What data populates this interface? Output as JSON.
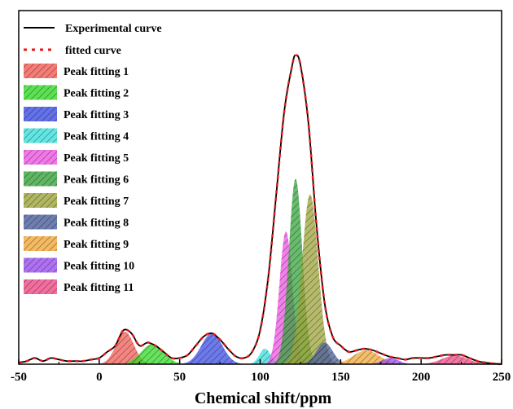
{
  "chart_data": {
    "type": "area",
    "title": "",
    "xlabel": "Chemical shift/ppm",
    "ylabel": "",
    "xlim": [
      -50,
      250
    ],
    "ylim": [
      0,
      1.0
    ],
    "x_ticks": [
      -50,
      0,
      50,
      100,
      150,
      200,
      250
    ],
    "x_tick_labels": [
      "-50",
      "0",
      "50",
      "100",
      "150",
      "200",
      "250"
    ],
    "grid": false,
    "legend_position": "top-left",
    "experimental_curve": {
      "name": "Experimental curve",
      "color": "#000000",
      "x": [
        -50,
        -45,
        -40,
        -35,
        -30,
        -25,
        -20,
        -15,
        -10,
        -5,
        0,
        5,
        10,
        15,
        20,
        25,
        30,
        35,
        40,
        45,
        50,
        55,
        60,
        65,
        70,
        75,
        80,
        85,
        90,
        95,
        100,
        105,
        110,
        115,
        120,
        122,
        125,
        130,
        135,
        140,
        145,
        150,
        155,
        160,
        165,
        170,
        175,
        180,
        185,
        190,
        195,
        200,
        205,
        210,
        215,
        220,
        225,
        230,
        235,
        240,
        245,
        250
      ],
      "y": [
        0.005,
        0.01,
        0.02,
        0.01,
        0.02,
        0.015,
        0.01,
        0.01,
        0.01,
        0.015,
        0.02,
        0.04,
        0.06,
        0.11,
        0.1,
        0.06,
        0.07,
        0.06,
        0.04,
        0.02,
        0.02,
        0.03,
        0.06,
        0.09,
        0.1,
        0.08,
        0.05,
        0.025,
        0.02,
        0.04,
        0.11,
        0.28,
        0.55,
        0.82,
        0.97,
        1.0,
        0.97,
        0.78,
        0.45,
        0.2,
        0.09,
        0.06,
        0.04,
        0.045,
        0.05,
        0.045,
        0.035,
        0.025,
        0.02,
        0.015,
        0.02,
        0.02,
        0.02,
        0.025,
        0.03,
        0.03,
        0.03,
        0.02,
        0.01,
        0.005,
        0.002,
        0.0
      ]
    },
    "fitted_curve": {
      "name": "fitted curve",
      "color": "#e8191b"
    },
    "peaks": [
      {
        "name": "Peak fitting 1",
        "center": 16,
        "height": 0.105,
        "width": 5.5,
        "color": "#f25c54"
      },
      {
        "name": "Peak fitting 2",
        "center": 33,
        "height": 0.065,
        "width": 7,
        "color": "#33d927"
      },
      {
        "name": "Peak fitting 3",
        "center": 70,
        "height": 0.1,
        "width": 6.5,
        "color": "#3c4ee6"
      },
      {
        "name": "Peak fitting 4",
        "center": 103,
        "height": 0.05,
        "width": 3.5,
        "color": "#38e0dc"
      },
      {
        "name": "Peak fitting 5",
        "center": 116,
        "height": 0.43,
        "width": 4,
        "color": "#ef55e4"
      },
      {
        "name": "Peak fitting 6",
        "center": 122,
        "height": 0.6,
        "width": 4.2,
        "color": "#37a43c"
      },
      {
        "name": "Peak fitting 7",
        "center": 131,
        "height": 0.55,
        "width": 5,
        "color": "#9ea43a"
      },
      {
        "name": "Peak fitting 8",
        "center": 140,
        "height": 0.07,
        "width": 5,
        "color": "#4a5e9c"
      },
      {
        "name": "Peak fitting 9",
        "center": 166,
        "height": 0.045,
        "width": 8,
        "color": "#f2a83a"
      },
      {
        "name": "Peak fitting 10",
        "center": 181,
        "height": 0.02,
        "width": 5,
        "color": "#9b4ef0"
      },
      {
        "name": "Peak fitting 11",
        "center": 221,
        "height": 0.028,
        "width": 8,
        "color": "#ef4a86"
      }
    ]
  }
}
